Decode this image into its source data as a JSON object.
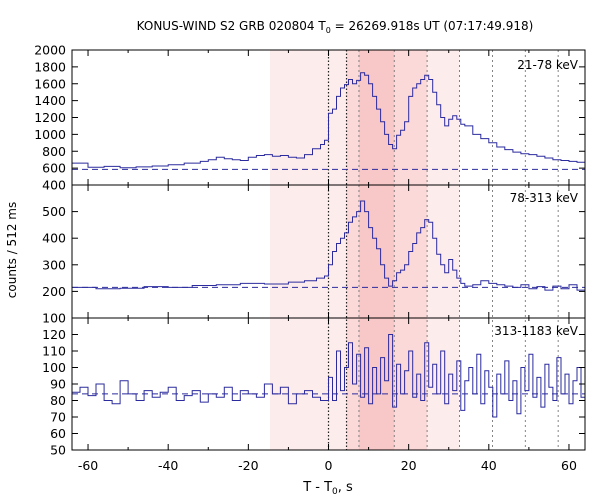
{
  "chart_data": {
    "type": "line",
    "title": "KONUS-WIND S2 GRB 020804 T",
    "title_sub": "0",
    "title_rest": " = 26269.918s UT (07:17:49.918)",
    "xlabel": "T - T",
    "xlabel_sub": "0",
    "xlabel_rest": ", s",
    "ylabel": "counts / 512 ms",
    "xlim": [
      -64,
      64
    ],
    "xticks": [
      -60,
      -40,
      -20,
      0,
      20,
      40,
      60
    ],
    "shading": {
      "outer": [
        -14.6,
        32.7
      ],
      "mid": [
        4.5,
        24.6
      ],
      "inner": [
        7.6,
        16.4
      ]
    },
    "vlines_dotted_black": [
      0,
      4.5
    ],
    "vlines_dotted_gray": [
      7.6,
      16.4,
      24.6,
      32.7,
      40.9,
      49.1,
      57.3
    ],
    "colors": {
      "series": "#2b2b9e",
      "outer": "#fdecec",
      "mid": "#fbd9d9",
      "inner": "#f8c8c8"
    },
    "panels": [
      {
        "energy_label": "21-78 keV",
        "ylim": [
          400,
          2000
        ],
        "yticks": [
          400,
          600,
          800,
          1000,
          1200,
          1400,
          1600,
          1800,
          2000
        ],
        "background": 585,
        "series": {
          "x": [
            -64,
            -60,
            -56,
            -52,
            -48,
            -44,
            -40,
            -36,
            -32,
            -30,
            -28,
            -26,
            -24,
            -22,
            -20,
            -18,
            -16,
            -14,
            -12,
            -10,
            -8,
            -6,
            -4,
            -2,
            -1,
            0,
            1,
            2,
            3,
            4,
            5,
            6,
            7,
            8,
            9,
            10,
            11,
            12,
            13,
            14,
            15,
            16,
            17,
            18,
            19,
            20,
            21,
            22,
            23,
            24,
            25,
            26,
            27,
            28,
            29,
            30,
            31,
            32,
            33,
            34,
            35,
            36,
            38,
            40,
            42,
            44,
            46,
            48,
            50,
            52,
            54,
            56,
            58,
            60,
            62,
            64
          ],
          "y": [
            660,
            610,
            620,
            605,
            615,
            625,
            640,
            660,
            680,
            700,
            730,
            710,
            700,
            690,
            730,
            750,
            760,
            740,
            750,
            730,
            720,
            760,
            830,
            880,
            930,
            1250,
            1300,
            1450,
            1550,
            1590,
            1650,
            1600,
            1640,
            1730,
            1700,
            1600,
            1450,
            1300,
            1150,
            1000,
            880,
            830,
            990,
            1050,
            1150,
            1450,
            1550,
            1600,
            1650,
            1700,
            1650,
            1500,
            1350,
            1200,
            1100,
            1180,
            1220,
            1180,
            1120,
            1100,
            1100,
            1000,
            950,
            900,
            850,
            820,
            790,
            770,
            760,
            740,
            720,
            700,
            690,
            680,
            670,
            650
          ]
        }
      },
      {
        "energy_label": "78-313 keV",
        "ylim": [
          100,
          600
        ],
        "yticks": [
          100,
          200,
          300,
          400,
          500
        ],
        "background": 215,
        "series": {
          "x": [
            -64,
            -58,
            -52,
            -46,
            -40,
            -34,
            -28,
            -22,
            -16,
            -10,
            -6,
            -3,
            -1,
            0,
            1,
            2,
            3,
            4,
            5,
            6,
            7,
            8,
            9,
            10,
            11,
            12,
            13,
            14,
            15,
            16,
            17,
            18,
            19,
            20,
            21,
            22,
            23,
            24,
            25,
            26,
            27,
            28,
            29,
            30,
            31,
            32,
            33,
            34,
            36,
            38,
            40,
            42,
            44,
            46,
            48,
            50,
            52,
            54,
            56,
            58,
            60,
            62,
            64
          ],
          "y": [
            215,
            210,
            212,
            218,
            215,
            222,
            225,
            230,
            228,
            235,
            240,
            250,
            258,
            300,
            350,
            380,
            400,
            420,
            460,
            480,
            500,
            540,
            500,
            440,
            400,
            360,
            300,
            250,
            220,
            240,
            270,
            280,
            300,
            350,
            380,
            420,
            440,
            470,
            460,
            400,
            340,
            300,
            270,
            320,
            280,
            250,
            230,
            220,
            225,
            240,
            230,
            225,
            220,
            215,
            225,
            210,
            218,
            205,
            220,
            210,
            225,
            205,
            215
          ]
        }
      },
      {
        "energy_label": "313-1183 keV",
        "ylim": [
          50,
          130
        ],
        "yticks": [
          50,
          60,
          70,
          80,
          90,
          100,
          110,
          120
        ],
        "background": 84,
        "series": {
          "x": [
            -64,
            -62,
            -60,
            -58,
            -56,
            -54,
            -52,
            -50,
            -48,
            -46,
            -44,
            -42,
            -40,
            -38,
            -36,
            -34,
            -32,
            -30,
            -28,
            -26,
            -24,
            -22,
            -20,
            -18,
            -16,
            -14,
            -12,
            -10,
            -8,
            -6,
            -4,
            -2,
            0,
            1,
            2,
            3,
            4,
            5,
            6,
            7,
            8,
            9,
            10,
            11,
            12,
            13,
            14,
            15,
            16,
            17,
            18,
            19,
            20,
            21,
            22,
            23,
            24,
            25,
            26,
            27,
            28,
            29,
            30,
            31,
            32,
            33,
            34,
            35,
            36,
            37,
            38,
            39,
            40,
            41,
            42,
            43,
            44,
            45,
            46,
            47,
            48,
            49,
            50,
            51,
            52,
            53,
            54,
            55,
            56,
            57,
            58,
            59,
            60,
            61,
            62,
            63,
            64
          ],
          "y": [
            85,
            88,
            83,
            90,
            80,
            78,
            92,
            84,
            80,
            86,
            82,
            85,
            88,
            80,
            83,
            86,
            79,
            84,
            82,
            88,
            80,
            86,
            84,
            82,
            90,
            84,
            88,
            78,
            84,
            86,
            82,
            80,
            94,
            80,
            110,
            86,
            100,
            115,
            90,
            108,
            82,
            112,
            78,
            100,
            84,
            106,
            92,
            120,
            76,
            102,
            84,
            98,
            110,
            82,
            96,
            80,
            115,
            88,
            102,
            84,
            110,
            78,
            96,
            86,
            104,
            74,
            92,
            100,
            84,
            108,
            78,
            98,
            88,
            70,
            96,
            84,
            104,
            80,
            92,
            72,
            100,
            86,
            108,
            82,
            94,
            76,
            102,
            88,
            80,
            106,
            84,
            96,
            78,
            92,
            100,
            82,
            90
          ]
        }
      }
    ]
  }
}
